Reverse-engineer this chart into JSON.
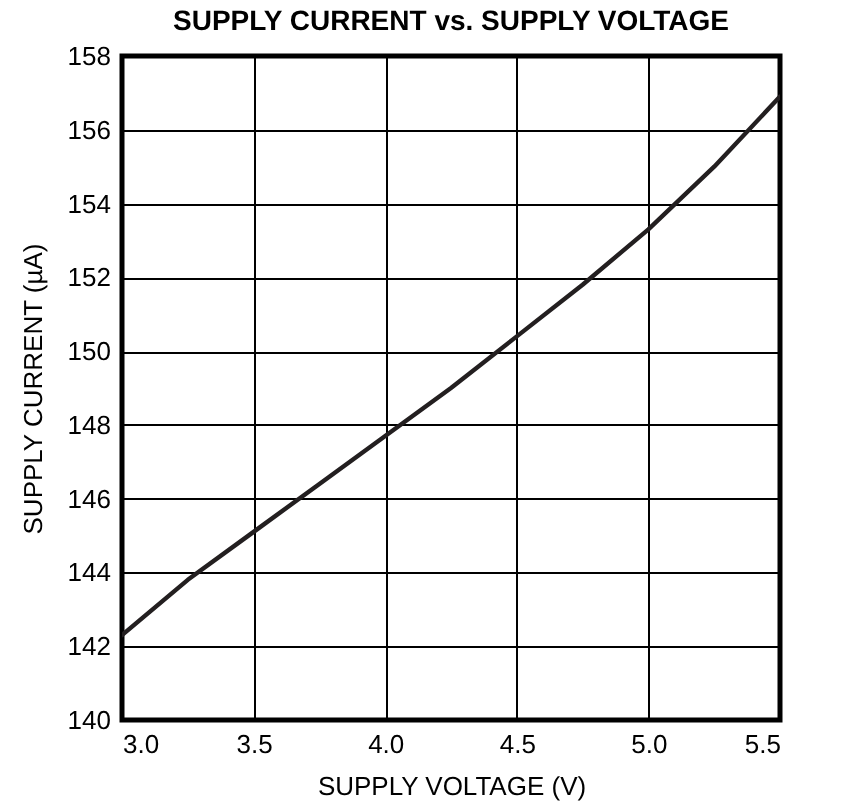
{
  "chart_data": {
    "type": "line",
    "title": "SUPPLY CURRENT vs. SUPPLY VOLTAGE",
    "xlabel": "SUPPLY VOLTAGE (V)",
    "ylabel": "SUPPLY CURRENT (µA)",
    "x": [
      3.0,
      3.25,
      3.5,
      3.75,
      4.0,
      4.25,
      4.5,
      4.75,
      5.0,
      5.25,
      5.5
    ],
    "series": [
      {
        "color": "#231f20",
        "values": [
          142.3,
          143.8,
          145.1,
          146.4,
          147.7,
          149.0,
          150.4,
          151.8,
          153.3,
          155.0,
          156.9
        ]
      }
    ],
    "xlim": [
      3.0,
      5.5
    ],
    "xticks": [
      {
        "value": 3.0,
        "label": "3.0"
      },
      {
        "value": 3.5,
        "label": "3.5"
      },
      {
        "value": 4.0,
        "label": "4.0"
      },
      {
        "value": 4.5,
        "label": "4.5"
      },
      {
        "value": 5.0,
        "label": "5.0"
      },
      {
        "value": 5.5,
        "label": "5.5"
      }
    ],
    "ylim": [
      140,
      158
    ],
    "yticks": [
      140,
      142,
      144,
      146,
      148,
      150,
      152,
      154,
      156,
      158
    ],
    "grid": true,
    "line_style": "solid",
    "marker": "none"
  }
}
